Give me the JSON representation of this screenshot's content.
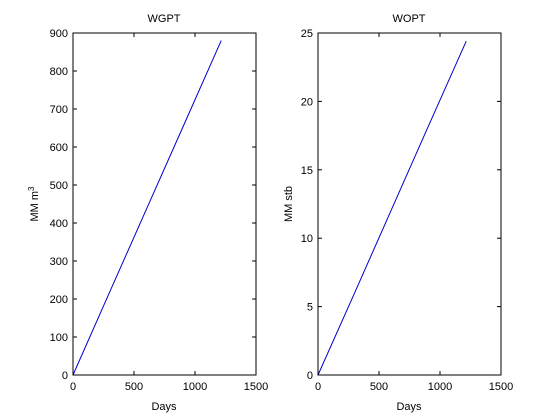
{
  "figure": {
    "background": "#ffffff",
    "axes_color": "#000000",
    "line_color": "#0000cc"
  },
  "chart_data": [
    {
      "type": "line",
      "title": "WGPT",
      "xlabel": "Days",
      "ylabel": "MM m",
      "ylabel_superscript": "3",
      "xlim": [
        0,
        1500
      ],
      "ylim": [
        0,
        900
      ],
      "xticks": [
        0,
        500,
        1000,
        1500
      ],
      "yticks": [
        0,
        100,
        200,
        300,
        400,
        500,
        600,
        700,
        800,
        900
      ],
      "grid": false,
      "series": [
        {
          "x": [
            0,
            300,
            600,
            900,
            1215
          ],
          "y": [
            0,
            218,
            435,
            652,
            880
          ]
        }
      ]
    },
    {
      "type": "line",
      "title": "WOPT",
      "xlabel": "Days",
      "ylabel": "MM stb",
      "xlim": [
        0,
        1500
      ],
      "ylim": [
        0,
        25
      ],
      "xticks": [
        0,
        500,
        1000,
        1500
      ],
      "yticks": [
        0,
        5,
        10,
        15,
        20,
        25
      ],
      "grid": false,
      "series": [
        {
          "x": [
            0,
            300,
            600,
            900,
            1215
          ],
          "y": [
            0,
            6.0,
            12.05,
            18.1,
            24.4
          ]
        }
      ]
    }
  ]
}
